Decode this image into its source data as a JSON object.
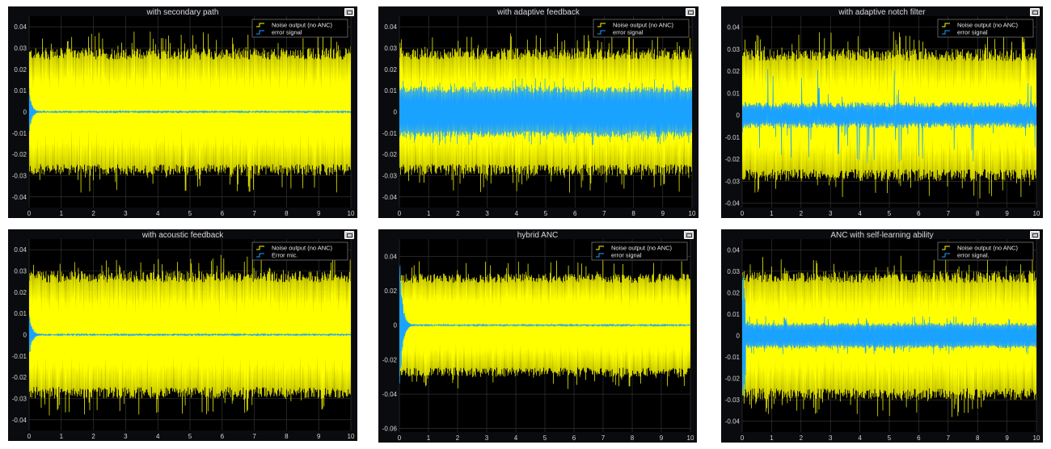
{
  "colors": {
    "background": "#0a0b0e",
    "axes_background": "#000000",
    "grid": "#3a3a3a",
    "noise_series": "#ffff00",
    "error_series": "#1aa2ff"
  },
  "icons": {
    "undock": "undock-icon"
  },
  "chart_data": [
    {
      "type": "line",
      "title": "with secondary path",
      "xlim": [
        0,
        10
      ],
      "ylim": [
        -0.045,
        0.045
      ],
      "x_ticks": [
        "0",
        "1",
        "2",
        "3",
        "4",
        "5",
        "6",
        "7",
        "8",
        "9",
        "10"
      ],
      "y_ticks": [
        "0.04",
        "0.03",
        "0.02",
        "0.01",
        "0",
        "-0.01",
        "-0.02",
        "-0.03",
        "-0.04"
      ],
      "y_tick_values": [
        0.04,
        0.03,
        0.02,
        0.01,
        0,
        -0.01,
        -0.02,
        -0.03,
        -0.04
      ],
      "grid": true,
      "legend_position": "top-right",
      "series": [
        {
          "name": "Noise output (no ANC)",
          "profile": "noise",
          "amplitude": 0.03,
          "peak": 0.038
        },
        {
          "name": "error signal",
          "profile": "decay",
          "initial_amplitude": 0.012,
          "time_constant": 0.08,
          "steady_amplitude": 0.0004
        }
      ]
    },
    {
      "type": "line",
      "title": "with adaptive feedback",
      "xlim": [
        0,
        10
      ],
      "ylim": [
        -0.045,
        0.045
      ],
      "x_ticks": [
        "0",
        "1",
        "2",
        "3",
        "4",
        "5",
        "6",
        "7",
        "8",
        "9",
        "10"
      ],
      "y_ticks": [
        "0.04",
        "0.03",
        "0.02",
        "0.01",
        "0",
        "-0.01",
        "-0.02",
        "-0.03",
        "-0.04"
      ],
      "y_tick_values": [
        0.04,
        0.03,
        0.02,
        0.01,
        0,
        -0.01,
        -0.02,
        -0.03,
        -0.04
      ],
      "grid": true,
      "legend_position": "top-right",
      "series": [
        {
          "name": "Noise output (no ANC)",
          "profile": "noise",
          "amplitude": 0.03,
          "peak": 0.038
        },
        {
          "name": "error signal",
          "profile": "band",
          "amplitude": 0.012,
          "peak": 0.016
        }
      ]
    },
    {
      "type": "line",
      "title": "with adaptive notch filter",
      "xlim": [
        0,
        10
      ],
      "ylim": [
        -0.042,
        0.045
      ],
      "x_ticks": [
        "0",
        "1",
        "2",
        "3",
        "4",
        "5",
        "6",
        "7",
        "8",
        "9",
        "10"
      ],
      "y_ticks": [
        "0.04",
        "0.03",
        "0.02",
        "0.01",
        "0",
        "-0.01",
        "-0.02",
        "-0.03",
        "-0.04"
      ],
      "y_tick_values": [
        0.04,
        0.03,
        0.02,
        0.01,
        0,
        -0.01,
        -0.02,
        -0.03,
        -0.04
      ],
      "grid": true,
      "legend_position": "top-right",
      "series": [
        {
          "name": "Noise output (no ANC)",
          "profile": "noise",
          "amplitude": 0.03,
          "peak": 0.038
        },
        {
          "name": "error signal",
          "profile": "spiky",
          "amplitude": 0.006,
          "peak": 0.022
        }
      ]
    },
    {
      "type": "line",
      "title": "with acoustic feedback",
      "xlim": [
        0,
        10
      ],
      "ylim": [
        -0.045,
        0.045
      ],
      "x_ticks": [
        "0",
        "1",
        "2",
        "3",
        "4",
        "5",
        "6",
        "7",
        "8",
        "9",
        "10"
      ],
      "y_ticks": [
        "0.04",
        "0.03",
        "0.02",
        "0.01",
        "0",
        "-0.01",
        "-0.02",
        "-0.03",
        "-0.04"
      ],
      "y_tick_values": [
        0.04,
        0.03,
        0.02,
        0.01,
        0,
        -0.01,
        -0.02,
        -0.03,
        -0.04
      ],
      "grid": true,
      "legend_position": "top-right",
      "series": [
        {
          "name": "Noise output (no ANC)",
          "profile": "noise",
          "amplitude": 0.03,
          "peak": 0.038
        },
        {
          "name": "Error mic.",
          "profile": "decay",
          "initial_amplitude": 0.012,
          "time_constant": 0.09,
          "steady_amplitude": 0.0004
        }
      ]
    },
    {
      "type": "line",
      "title": "hybrid ANC",
      "xlim": [
        0,
        10
      ],
      "ylim": [
        -0.062,
        0.05
      ],
      "x_ticks": [
        "0",
        "1",
        "2",
        "3",
        "4",
        "5",
        "6",
        "7",
        "8",
        "9",
        "10"
      ],
      "y_ticks": [
        "0.04",
        "0.02",
        "0",
        "-0.02",
        "-0.04",
        "-0.06"
      ],
      "y_tick_values": [
        0.04,
        0.02,
        0,
        -0.02,
        -0.04,
        -0.06
      ],
      "grid": true,
      "legend_position": "top-right",
      "series": [
        {
          "name": "Noise output (no ANC)",
          "profile": "noise",
          "amplitude": 0.03,
          "peak": 0.038
        },
        {
          "name": "error signal",
          "profile": "decay",
          "initial_amplitude": 0.045,
          "time_constant": 0.1,
          "steady_amplitude": 0.0005
        }
      ]
    },
    {
      "type": "line",
      "title": "ANC with self-learning ability",
      "xlim": [
        0,
        10
      ],
      "ylim": [
        -0.045,
        0.045
      ],
      "x_ticks": [
        "0",
        "1",
        "2",
        "3",
        "4",
        "5",
        "6",
        "7",
        "8",
        "9",
        "10"
      ],
      "y_ticks": [
        "0.04",
        "0.03",
        "0.02",
        "0.01",
        "0",
        "-0.01",
        "-0.02",
        "-0.03",
        "-0.04"
      ],
      "y_tick_values": [
        0.04,
        0.03,
        0.02,
        0.01,
        0,
        -0.01,
        -0.02,
        -0.03,
        -0.04
      ],
      "grid": true,
      "legend_position": "top-right",
      "series": [
        {
          "name": "Noise output (no ANC)",
          "profile": "noise",
          "amplitude": 0.03,
          "peak": 0.038
        },
        {
          "name": "error signal.",
          "profile": "band",
          "amplitude": 0.006,
          "peak": 0.009,
          "initial_peak": 0.028
        }
      ]
    }
  ]
}
